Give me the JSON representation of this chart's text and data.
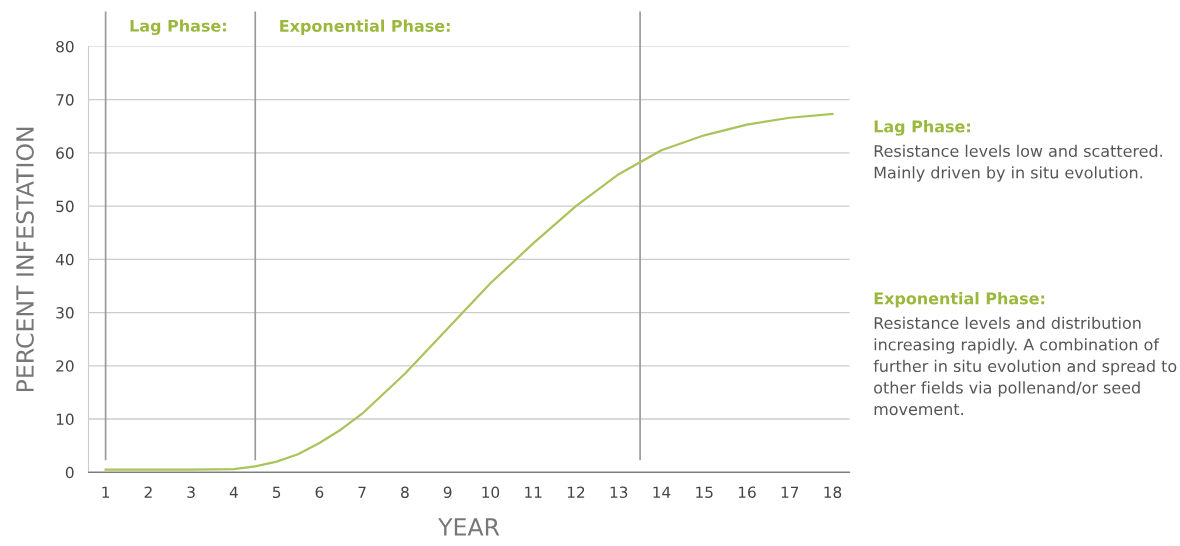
{
  "chart_data": {
    "type": "line",
    "xlabel": "YEAR",
    "ylabel": "PERCENT INFESTATION",
    "x": [
      1,
      2,
      3,
      4,
      4.5,
      5,
      5.5,
      6,
      6.5,
      7,
      8,
      9,
      10,
      11,
      12,
      13,
      14,
      15,
      16,
      17,
      18
    ],
    "series": [
      {
        "color": "#a9c45a",
        "values": [
          0.5,
          0.5,
          0.5,
          0.6,
          1.1,
          2,
          3.4,
          5.5,
          8,
          11,
          18.5,
          27,
          35.5,
          43,
          50,
          56,
          60.5,
          63.3,
          65.3,
          66.6,
          67.3
        ]
      }
    ],
    "xlim": [
      0.6,
      18.4
    ],
    "ylim": [
      0,
      80
    ],
    "xticks": [
      1,
      2,
      3,
      4,
      5,
      6,
      7,
      8,
      9,
      10,
      11,
      12,
      13,
      14,
      15,
      16,
      17,
      18
    ],
    "yticks": [
      0,
      10,
      20,
      30,
      40,
      50,
      60,
      70,
      80
    ],
    "grid": "y",
    "marker": "none",
    "line_style": "solid",
    "ref_lines": [
      {
        "axis": "x",
        "value": 1,
        "label": "Lag Phase:",
        "color": "#999999"
      },
      {
        "axis": "x",
        "value": 4.5,
        "label": "Exponential Phase:",
        "color": "#999999"
      },
      {
        "axis": "x",
        "value": 13.5,
        "color": "#999999"
      }
    ],
    "annotations": [
      "Lag Phase: Resistance levels low and scattered. Mainly driven by in situ evolution.",
      "Exponential Phase: Resistance levels and distribution increasing rapidly. A combination of further in situ evolution and spread to other fields via pollenand/or seed movement."
    ]
  }
}
